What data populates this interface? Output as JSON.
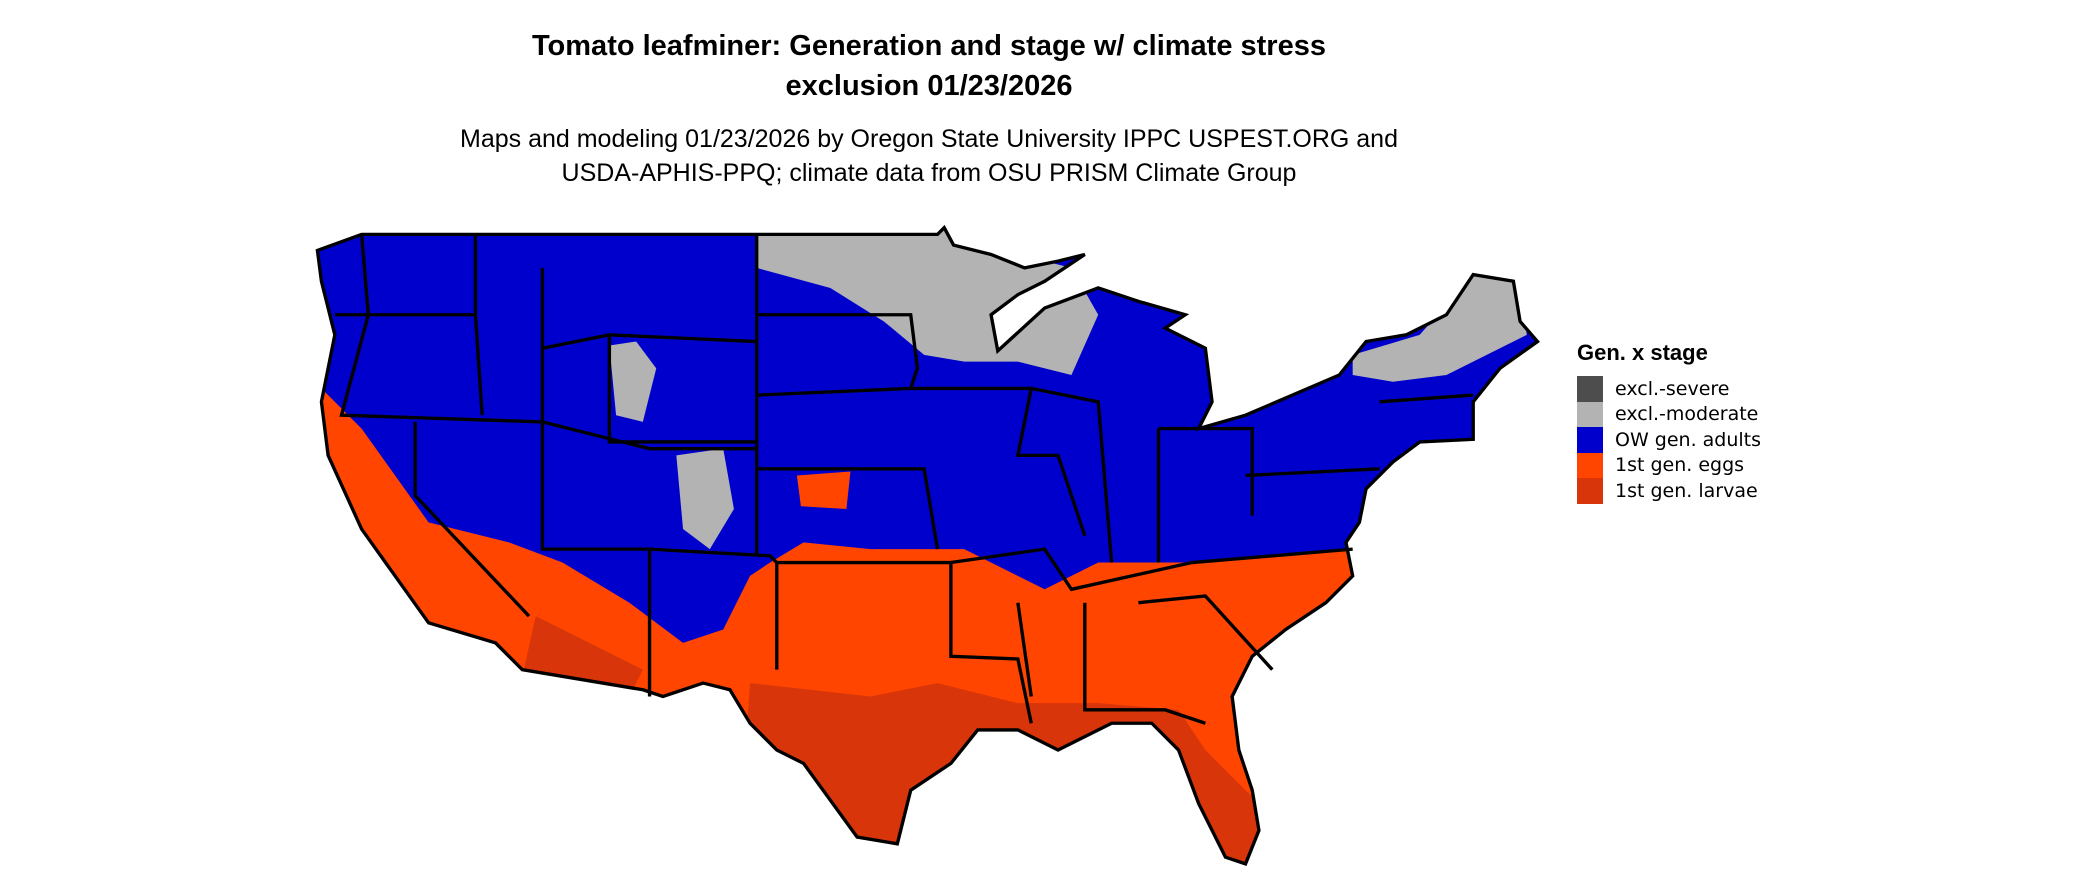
{
  "chart_data": {
    "type": "map",
    "title_line1": "Tomato leafminer: Generation and stage w/ climate stress",
    "title_line2": "exclusion 01/23/2026",
    "subtitle_line1": "Maps and modeling 01/23/2026 by Oregon State University IPPC USPEST.ORG and",
    "subtitle_line2": "USDA-APHIS-PPQ; climate data from OSU PRISM Climate Group",
    "region": "Contiguous United States",
    "legend": {
      "title": "Gen. x stage",
      "placement": "right",
      "items": [
        {
          "label": "excl.-severe",
          "color": "#4d4d4d"
        },
        {
          "label": "excl.-moderate",
          "color": "#b3b3b3"
        },
        {
          "label": "OW gen. adults",
          "color": "#0000cd"
        },
        {
          "label": "1st gen. eggs",
          "color": "#ff4500"
        },
        {
          "label": "1st gen. larvae",
          "color": "#d9350b"
        }
      ]
    }
  }
}
